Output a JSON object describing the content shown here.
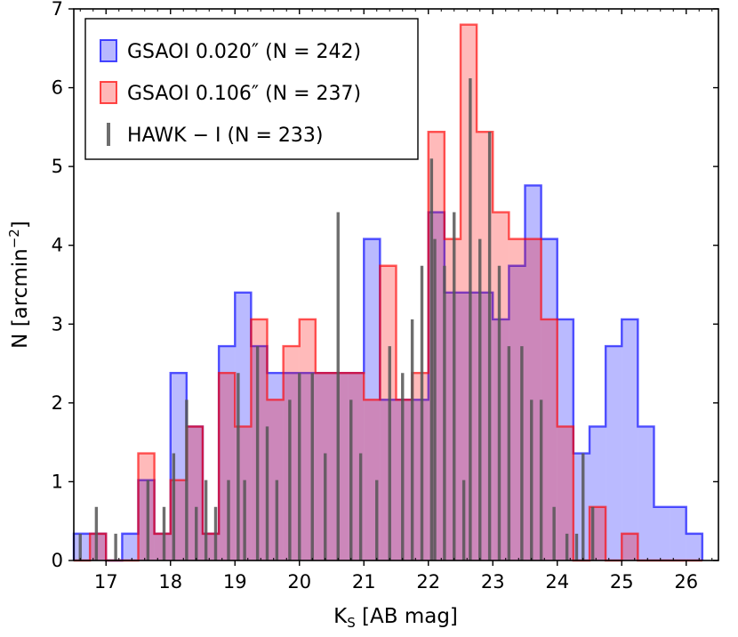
{
  "chart_data": {
    "type": "histogram",
    "xlabel": "K_S [AB mag]",
    "xlabel_main": "K",
    "xlabel_sub": "S",
    "xlabel_rest": " [AB mag]",
    "ylabel": "N [arcmin^-2]",
    "ylabel_main": "N [arcmin",
    "ylabel_sup": "−2",
    "ylabel_end": "]",
    "xlim": [
      16.5,
      26.5
    ],
    "ylim": [
      0,
      7
    ],
    "xticks": [
      17,
      18,
      19,
      20,
      21,
      22,
      23,
      24,
      25,
      26
    ],
    "yticks": [
      0,
      1,
      2,
      3,
      4,
      5,
      6,
      7
    ],
    "legend_position": "top-left",
    "bin_edges": [
      16.5,
      16.75,
      17.0,
      17.25,
      17.5,
      17.75,
      18.0,
      18.25,
      18.5,
      18.75,
      19.0,
      19.25,
      19.5,
      19.75,
      20.0,
      20.25,
      20.5,
      20.75,
      21.0,
      21.25,
      21.5,
      21.75,
      22.0,
      22.25,
      22.5,
      22.75,
      23.0,
      23.25,
      23.5,
      23.75,
      24.0,
      24.25,
      24.5,
      24.75,
      25.0,
      25.25,
      25.5,
      25.75,
      26.0,
      26.25
    ],
    "series": [
      {
        "name": "GSAOI 0.020″ (N = 242)",
        "color": "#0000ff",
        "values": [
          0.34,
          0.34,
          0,
          0.34,
          1.02,
          0.34,
          2.38,
          1.7,
          0.34,
          2.72,
          3.4,
          2.72,
          2.38,
          2.38,
          2.38,
          2.38,
          2.38,
          2.38,
          4.08,
          2.04,
          2.04,
          2.04,
          4.42,
          3.4,
          3.4,
          3.4,
          3.06,
          3.74,
          4.76,
          4.08,
          3.06,
          1.36,
          1.7,
          2.72,
          3.06,
          1.7,
          0.68,
          0.68,
          0.34
        ]
      },
      {
        "name": "GSAOI 0.106″ (N = 237)",
        "color": "#ff0000",
        "values": [
          0,
          0.34,
          0,
          0,
          1.36,
          0.34,
          1.02,
          1.7,
          0.34,
          2.38,
          1.7,
          3.06,
          2.04,
          2.72,
          3.06,
          2.38,
          2.38,
          2.38,
          2.04,
          3.74,
          2.04,
          2.38,
          5.44,
          4.08,
          6.8,
          5.44,
          4.42,
          4.08,
          4.08,
          3.06,
          1.7,
          0,
          0.68,
          0,
          0.34,
          0,
          0,
          0,
          0
        ]
      },
      {
        "name": "HAWK − I (N = 233)",
        "color": "#555555",
        "type": "lines",
        "x": [
          16.6,
          16.85,
          17.15,
          17.65,
          17.9,
          18.05,
          18.25,
          18.4,
          18.55,
          18.7,
          18.9,
          19.05,
          19.15,
          19.35,
          19.5,
          19.65,
          19.85,
          20.0,
          20.2,
          20.4,
          20.6,
          20.8,
          20.95,
          21.2,
          21.4,
          21.6,
          21.75,
          21.9,
          22.05,
          22.1,
          22.25,
          22.4,
          22.55,
          22.65,
          22.8,
          22.95,
          23.1,
          23.25,
          23.45,
          23.6,
          23.75,
          23.95,
          24.15,
          24.3,
          24.4,
          24.55
        ],
        "values": [
          0.34,
          0.68,
          0.34,
          1.02,
          0.68,
          1.36,
          2.04,
          0.68,
          1.02,
          0.68,
          1.02,
          2.38,
          1.02,
          2.72,
          1.7,
          1.02,
          2.04,
          2.38,
          2.38,
          1.36,
          4.42,
          2.04,
          1.36,
          1.02,
          2.72,
          2.38,
          3.06,
          3.74,
          5.1,
          4.08,
          3.74,
          4.42,
          1.02,
          6.12,
          4.08,
          5.44,
          3.74,
          2.72,
          2.72,
          2.04,
          2.04,
          0.68,
          0.34,
          0.34,
          1.36,
          0.68
        ]
      }
    ]
  }
}
